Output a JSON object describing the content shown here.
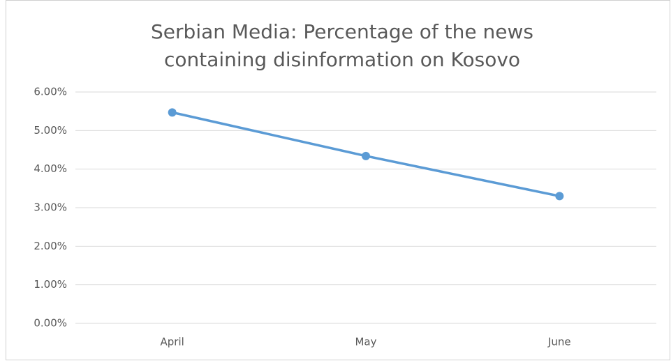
{
  "chart_data": {
    "type": "line",
    "title": "Serbian Media: Percentage of the news containing disinformation on Kosovo",
    "categories": [
      "April",
      "May",
      "June"
    ],
    "series": [
      {
        "name": "Percentage of the news containing disinformation",
        "color": "#5b9bd5",
        "values": [
          5.47,
          4.34,
          3.3
        ]
      }
    ],
    "ylim": [
      0,
      6
    ],
    "yticks": [
      {
        "value": 0,
        "label": "0.00%"
      },
      {
        "value": 1,
        "label": "1.00%"
      },
      {
        "value": 2,
        "label": "2.00%"
      },
      {
        "value": 3,
        "label": "3.00%"
      },
      {
        "value": 4,
        "label": "4.00%"
      },
      {
        "value": 5,
        "label": "5.00%"
      },
      {
        "value": 6,
        "label": "6.00%"
      }
    ],
    "grid": true,
    "legend": false
  }
}
